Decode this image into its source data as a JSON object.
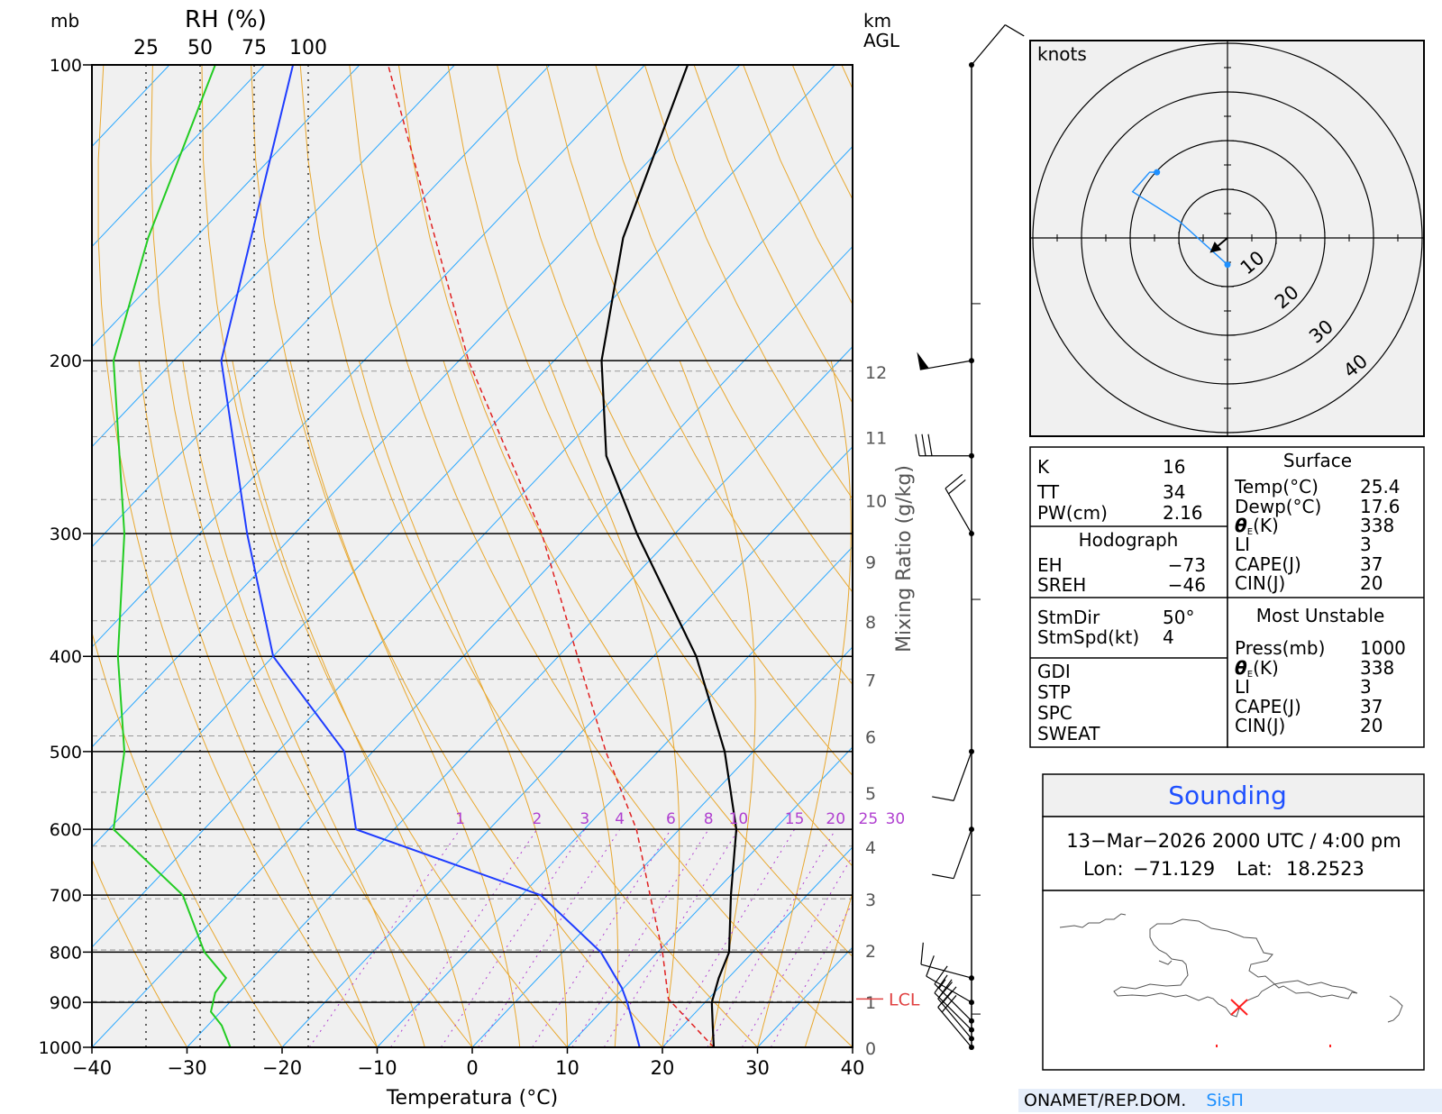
{
  "chart_data": {
    "type": "skew-t",
    "header": {
      "pressure_unit": "mb",
      "rh_label": "RH (%)",
      "rh_ticks": [
        "25",
        "50",
        "75",
        "100"
      ],
      "height_unit_1": "km",
      "height_unit_2": "AGL"
    },
    "xlabel": "Temperatura (°C)",
    "mixing_ratio_label": "Mixing Ratio (g/kg)",
    "x_ticks": [
      -40,
      -30,
      -20,
      -10,
      0,
      10,
      20,
      30,
      40
    ],
    "x_tick_labels": [
      "−40",
      "−30",
      "−20",
      "−10",
      "0",
      "10",
      "20",
      "30",
      "40"
    ],
    "xlim": [
      -40,
      40
    ],
    "pressure_ticks": [
      100,
      200,
      300,
      400,
      500,
      600,
      700,
      800,
      900,
      1000
    ],
    "pressure_tick_labels": [
      "100",
      "200",
      "300",
      "400",
      "500",
      "600",
      "700",
      "800",
      "900",
      "1000"
    ],
    "height_labels": [
      "0",
      "1",
      "2",
      "3",
      "4",
      "5",
      "6",
      "7",
      "8",
      "9",
      "10",
      "11",
      "12"
    ],
    "height_label_pressures": [
      1000,
      898,
      796,
      706,
      624,
      550,
      482,
      422,
      368,
      320,
      277,
      239,
      205
    ],
    "mixing_ratio_values": [
      1,
      2,
      3,
      4,
      6,
      8,
      10,
      15,
      20,
      25,
      30
    ],
    "mixing_ratio_labels": [
      "1",
      "2",
      "3",
      "4",
      "6",
      "8",
      "10",
      "15",
      "20",
      "25",
      "30"
    ],
    "lcl_label": "LCL",
    "lcl_pressure": 893,
    "temperature": {
      "pressure": [
        1000,
        950,
        900,
        850,
        800,
        700,
        600,
        500,
        400,
        300,
        250,
        200,
        150,
        100
      ],
      "value": [
        25.4,
        23.1,
        20.7,
        19.0,
        17.5,
        12.0,
        6.0,
        -3.0,
        -15.5,
        -34.0,
        -45.0,
        -55.0,
        -65.0,
        -75.5
      ]
    },
    "dewpoint": {
      "pressure": [
        1000,
        950,
        900,
        870,
        800,
        700,
        600,
        500,
        400,
        300,
        200,
        100
      ],
      "value": [
        17.6,
        14.8,
        11.8,
        9.8,
        4.0,
        -8.0,
        -34.0,
        -43.0,
        -60.0,
        -75.0,
        -95.0,
        -117.0
      ]
    },
    "relative_humidity": {
      "pressure": [
        1000,
        950,
        920,
        880,
        850,
        800,
        700,
        600,
        500,
        400,
        300,
        200,
        150,
        100
      ],
      "value": [
        64,
        60,
        55,
        57,
        62,
        52,
        42,
        10,
        15,
        12,
        15,
        10,
        26,
        57
      ]
    },
    "parcel": {
      "pressure": [
        1000,
        893,
        800,
        700,
        600,
        500,
        400,
        300,
        200,
        100
      ],
      "value": [
        25.4,
        15.8,
        10.5,
        3.5,
        -4.5,
        -15.5,
        -28.0,
        -44.0,
        -69.0,
        -107.0
      ]
    },
    "barbs": [
      {
        "pressure": 1000,
        "dir": 320,
        "speed": 20
      },
      {
        "pressure": 980,
        "dir": 320,
        "speed": 20
      },
      {
        "pressure": 960,
        "dir": 315,
        "speed": 20
      },
      {
        "pressure": 940,
        "dir": 315,
        "speed": 15
      },
      {
        "pressure": 900,
        "dir": 300,
        "speed": 10
      },
      {
        "pressure": 850,
        "dir": 285,
        "speed": 10
      },
      {
        "pressure": 600,
        "dir": 200,
        "speed": 10
      },
      {
        "pressure": 500,
        "dir": 200,
        "speed": 10
      },
      {
        "pressure": 300,
        "dir": 330,
        "speed": 20
      },
      {
        "pressure": 250,
        "dir": 270,
        "speed": 30
      },
      {
        "pressure": 200,
        "dir": 260,
        "speed": 50
      },
      {
        "pressure": 100,
        "dir": 40,
        "speed": 10
      }
    ],
    "hodograph": {
      "unit": "knots",
      "ring_labels": [
        "10",
        "20",
        "30",
        "40"
      ],
      "ring_values": [
        10,
        20,
        30,
        40
      ],
      "u": [
        0,
        -10,
        -19.5,
        -16,
        -14.5
      ],
      "v": [
        -5.5,
        3.5,
        9.5,
        13.5,
        13.5
      ],
      "storm_dir": 50,
      "storm_speed": 4
    }
  },
  "indices": {
    "k_label": "K",
    "k_value": "16",
    "tt_label": "TT",
    "tt_value": "34",
    "pw_label": "PW(cm)",
    "pw_value": "2.16",
    "hodo_title": "Hodograph",
    "eh_label": "EH",
    "eh_value": "−73",
    "sreh_label": "SREH",
    "sreh_value": "−46",
    "stmdir_label": "StmDir",
    "stmdir_value": "50°",
    "stmspd_label": "StmSpd(kt)",
    "stmspd_value": "4",
    "gdi_label": "GDI",
    "stp_label": "STP",
    "spc_label": "SPC",
    "sweat_label": "SWEAT"
  },
  "surface": {
    "title": "Surface",
    "temp_label": "Temp(°C)",
    "temp_value": "25.4",
    "dewp_label": "Dewp(°C)",
    "dewp_value": "17.6",
    "thetae_label": "θ",
    "thetae_sub": "E",
    "thetae_unit": "(K)",
    "thetae_value": "338",
    "li_label": "LI",
    "li_value": "3",
    "cape_label": "CAPE(J)",
    "cape_value": "37",
    "cin_label": "CIN(J)",
    "cin_value": "20"
  },
  "most_unstable": {
    "title": "Most Unstable",
    "press_label": "Press(mb)",
    "press_value": "1000",
    "thetae_label": "θ",
    "thetae_sub": "E",
    "thetae_unit": "(K)",
    "thetae_value": "338",
    "li_label": "LI",
    "li_value": "3",
    "cape_label": "CAPE(J)",
    "cape_value": "37",
    "cin_label": "CIN(J)",
    "cin_value": "20"
  },
  "sounding": {
    "title": "Sounding",
    "datetime": "13−Mar−2026 2000 UTC / 4:00 pm",
    "lon_label": "Lon:",
    "lon_value": "−71.129",
    "lat_label": "Lat:",
    "lat_value": "18.2523"
  },
  "footer": {
    "org": "ONAMET/REP.DOM.",
    "system": "SisΠ"
  },
  "colors": {
    "temperature": "#000000",
    "dewpoint": "#1e3cff",
    "parcel": "#e02020",
    "rh": "#22cc22",
    "isotherm": "#2aa8ff",
    "dry_adiabat": "#e8a830",
    "moist_adiabat": "#e8a830",
    "mixing_ratio": "#b040d0",
    "lcl": "#e04040",
    "hodograph_trace": "#1e90ff",
    "map_marker": "#ff2020",
    "plot_bg": "#f0f0f0"
  }
}
